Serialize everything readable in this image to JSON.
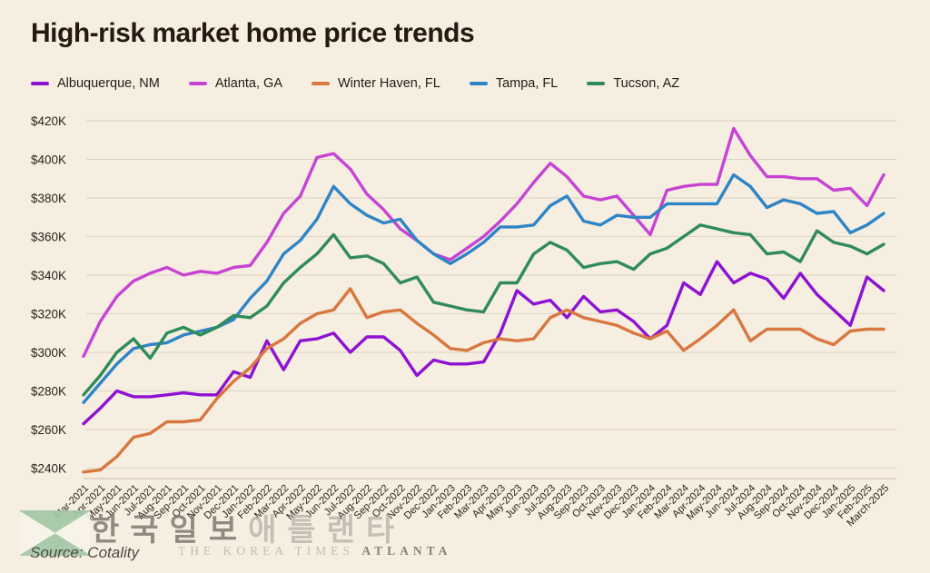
{
  "title": "High-risk market home price trends",
  "source": "Source: Cotality",
  "watermark": {
    "korean_bold": "한국일보",
    "korean_light": "애틀랜타",
    "caption_the": "THE KOREA TIMES",
    "caption_atlanta": "ATLANTA",
    "logo_color": "#a3c9a5"
  },
  "colors": {
    "background": "#f6eee1",
    "gridline": "#ddd3c3",
    "axis_line": "#d3c8b7",
    "tick_text": "#2d241a"
  },
  "chart_data": {
    "type": "line",
    "title": "High-risk market home price trends",
    "xlabel": "",
    "ylabel": "",
    "grid": true,
    "legend_position": "top-left",
    "ylim": [
      232,
      424
    ],
    "y_ticks": [
      {
        "label": "$420K",
        "value": 420
      },
      {
        "label": "$400K",
        "value": 400
      },
      {
        "label": "$380K",
        "value": 380
      },
      {
        "label": "$360K",
        "value": 360
      },
      {
        "label": "$340K",
        "value": 340
      },
      {
        "label": "$320K",
        "value": 320
      },
      {
        "label": "$300K",
        "value": 300
      },
      {
        "label": "$280K",
        "value": 280
      },
      {
        "label": "$260K",
        "value": 260
      },
      {
        "label": "$240K",
        "value": 240
      }
    ],
    "x": [
      "Mar-2021",
      "Apr-2021",
      "May-2021",
      "Jun-2021",
      "Jul-2021",
      "Aug-2021",
      "Sep-2021",
      "Oct-2021",
      "Nov-2021",
      "Dec-2021",
      "Jan-2022",
      "Feb-2022",
      "Mar-2022",
      "Apr-2022",
      "May-2022",
      "Jun-2022",
      "Jul-2022",
      "Aug-2022",
      "Sep-2022",
      "Oct-2022",
      "Nov-2022",
      "Dec-2022",
      "Jan-2023",
      "Feb-2023",
      "Mar-2023",
      "Apr-2023",
      "May-2023",
      "Jun-2023",
      "Jul-2023",
      "Aug-2023",
      "Sep-2023",
      "Oct-2023",
      "Nov-2023",
      "Dec-2023",
      "Jan-2024",
      "Feb-2024",
      "Mar-2024",
      "Apr-2024",
      "May-2024",
      "Jun-2024",
      "Jul-2024",
      "Aug-2024",
      "Sep-2024",
      "Oct-2024",
      "Nov-2024",
      "Dec-2024",
      "Jan-2025",
      "Feb-2025",
      "March-2025"
    ],
    "series": [
      {
        "name": "Albuquerque, NM",
        "color": "#8e12d2",
        "values": [
          263,
          271,
          280,
          277,
          277,
          278,
          279,
          278,
          278,
          290,
          287,
          306,
          291,
          306,
          307,
          310,
          300,
          308,
          308,
          301,
          288,
          296,
          294,
          294,
          295,
          310,
          332,
          325,
          327,
          318,
          329,
          321,
          322,
          316,
          307,
          314,
          336,
          330,
          347,
          336,
          341,
          338,
          328,
          341,
          330,
          322,
          314,
          339,
          332
        ]
      },
      {
        "name": "Atlanta, GA",
        "color": "#c643d4",
        "values": [
          298,
          316,
          329,
          337,
          341,
          344,
          340,
          342,
          341,
          344,
          345,
          357,
          372,
          381,
          401,
          403,
          395,
          382,
          374,
          364,
          358,
          351,
          348,
          354,
          360,
          368,
          377,
          388,
          398,
          391,
          381,
          379,
          381,
          371,
          361,
          384,
          386,
          387,
          387,
          416,
          402,
          391,
          391,
          390,
          390,
          384,
          385,
          376,
          392
        ]
      },
      {
        "name": "Winter Haven, FL",
        "color": "#d8773f",
        "values": [
          238,
          239,
          246,
          256,
          258,
          264,
          264,
          265,
          276,
          285,
          292,
          302,
          307,
          315,
          320,
          322,
          333,
          318,
          321,
          322,
          315,
          309,
          302,
          301,
          305,
          307,
          306,
          307,
          318,
          322,
          318,
          316,
          314,
          310,
          307,
          311,
          301,
          307,
          314,
          322,
          306,
          312,
          312,
          312,
          307,
          304,
          311,
          312,
          312
        ]
      },
      {
        "name": "Tampa, FL",
        "color": "#2e85c6",
        "values": [
          274,
          284,
          294,
          302,
          304,
          305,
          309,
          311,
          313,
          317,
          328,
          337,
          351,
          358,
          369,
          386,
          377,
          371,
          367,
          369,
          358,
          351,
          346,
          351,
          357,
          365,
          365,
          366,
          376,
          381,
          368,
          366,
          371,
          370,
          370,
          377,
          377,
          377,
          377,
          392,
          386,
          375,
          379,
          377,
          372,
          373,
          362,
          366,
          372
        ]
      },
      {
        "name": "Tucson, AZ",
        "color": "#2f8c58",
        "values": [
          278,
          288,
          300,
          307,
          297,
          310,
          313,
          309,
          313,
          319,
          318,
          324,
          336,
          344,
          351,
          361,
          349,
          350,
          346,
          336,
          339,
          326,
          324,
          322,
          321,
          336,
          336,
          351,
          357,
          353,
          344,
          346,
          347,
          343,
          351,
          354,
          360,
          366,
          364,
          362,
          361,
          351,
          352,
          347,
          363,
          357,
          355,
          351,
          356
        ]
      }
    ]
  }
}
